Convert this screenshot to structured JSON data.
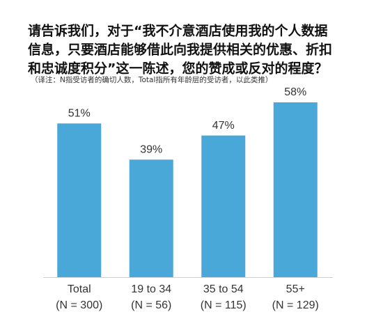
{
  "chart_data": {
    "type": "bar",
    "title_lines": [
      "请告诉我们，对于“我不介意酒店使用我的个人数据",
      "信息，只要酒店能够借此向我提供相关的优惠、折扣",
      "和忠诚度积分”这一陈述，您的赞成或反对的程度？"
    ],
    "subtitle": "（译注：N指受访者的确切人数，Total指所有年龄层的受访者，以此类推）",
    "categories": [
      "Total",
      "19 to 34",
      "35 to 54",
      "55+"
    ],
    "category_notes": [
      "(N = 300)",
      "(N = 56)",
      "(N = 115)",
      "(N = 129)"
    ],
    "values": [
      51,
      39,
      47,
      58
    ],
    "value_labels": [
      "51%",
      "39%",
      "47%",
      "58%"
    ],
    "color": "#4aa8d8"
  }
}
